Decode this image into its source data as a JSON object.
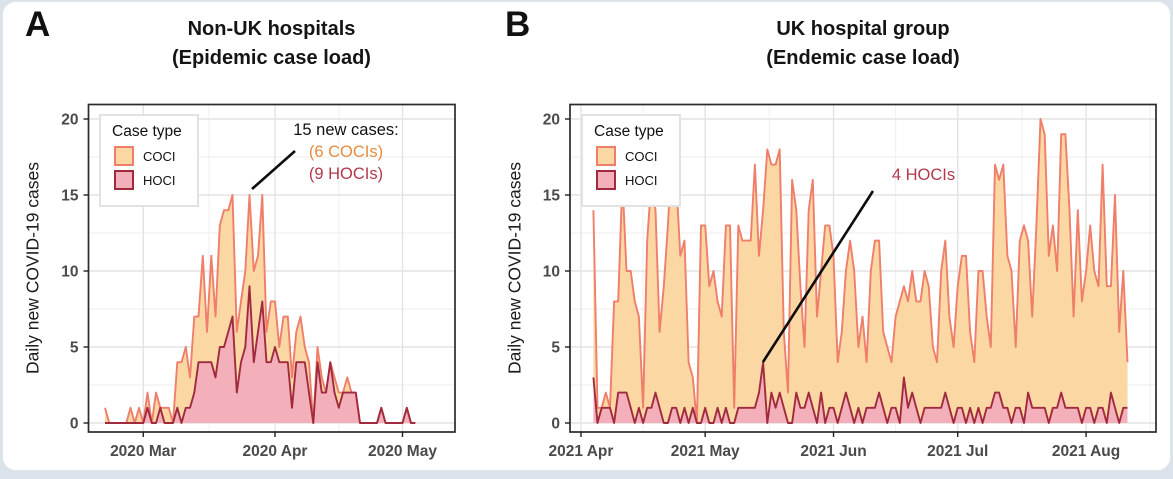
{
  "page": {
    "background": "#dbe2ea",
    "card_background": "#ffffff",
    "card_border": "#e3e7ec"
  },
  "panels": [
    {
      "label": "A",
      "title_line1": "Non-UK hospitals",
      "title_line2": "(Epidemic case load)",
      "y_axis_label": "Daily new COVID-19 cases",
      "legend": {
        "title": "Case type"
      },
      "annotation": {
        "line1": "15 new cases:",
        "line2": "(6 COCIs)",
        "line3": "(9 HOCIs)",
        "coci_color": "#E78C3E",
        "hoci_color": "#B2394B"
      }
    },
    {
      "label": "B",
      "title_line1": "UK hospital group",
      "title_line2": "(Endemic case load)",
      "y_axis_label": "Daily new COVID-19 cases",
      "legend": {
        "title": "Case type"
      },
      "annotation": {
        "line1": "4 HOCIs",
        "color": "#B2394B"
      }
    }
  ],
  "chart_data": [
    {
      "type": "area",
      "stacked": true,
      "title": "Non-UK hospitals (Epidemic case load)",
      "xlabel": "",
      "ylabel": "Daily new COVID-19 cases",
      "x_start_date": "2020-02-21",
      "x_tick_labels": [
        "2020 Mar",
        "2020 Apr",
        "2020 May"
      ],
      "y_ticks": [
        0,
        5,
        10,
        15,
        20
      ],
      "ylim": [
        -0.6,
        21
      ],
      "grid": true,
      "legend_position": "top-left",
      "series": [
        {
          "name": "COCI",
          "fill": "#FBD7A3",
          "stroke": "#EF7E6B",
          "values": [
            1,
            0,
            0,
            0,
            0,
            0,
            1,
            0,
            1,
            0,
            1,
            0,
            2,
            0,
            1,
            1,
            0,
            3,
            4,
            4,
            2,
            5,
            3,
            7,
            2,
            7,
            4,
            8,
            9,
            8,
            8,
            4,
            4,
            5,
            6,
            6,
            5,
            7,
            2,
            4,
            3,
            1,
            3,
            3,
            2,
            2,
            3,
            1,
            2,
            0,
            1,
            1,
            0,
            0,
            1,
            1,
            0,
            1,
            0,
            0,
            0,
            0,
            0,
            0,
            0,
            0,
            0,
            0,
            0,
            0,
            0,
            0,
            0,
            0
          ]
        },
        {
          "name": "HOCI",
          "fill": "#F3AFBA",
          "stroke": "#A02B3E",
          "values": [
            0,
            0,
            0,
            0,
            0,
            0,
            0,
            0,
            0,
            0,
            1,
            0,
            0,
            1,
            0,
            0,
            0,
            1,
            0,
            1,
            1,
            2,
            4,
            4,
            4,
            4,
            3,
            5,
            5,
            6,
            7,
            2,
            4,
            5,
            9,
            4,
            6,
            8,
            4,
            4,
            5,
            4,
            4,
            4,
            1,
            4,
            4,
            4,
            2,
            0,
            4,
            2,
            2,
            4,
            2,
            1,
            2,
            2,
            2,
            2,
            0,
            0,
            0,
            0,
            0,
            1,
            0,
            0,
            0,
            0,
            0,
            1,
            0,
            0
          ]
        }
      ],
      "annotation": {
        "text": "15 new cases: (6 COCIs) (9 HOCIs)",
        "date": "2020-03-26",
        "total": 15,
        "coci": 6,
        "hoci": 9
      }
    },
    {
      "type": "area",
      "stacked": true,
      "title": "UK hospital group (Endemic case load)",
      "xlabel": "",
      "ylabel": "Daily new COVID-19 cases",
      "x_start_date": "2021-04-04",
      "x_tick_labels": [
        "2021 Apr",
        "2021 May",
        "2021 Jun",
        "2021 Jul",
        "2021 Aug"
      ],
      "y_ticks": [
        0,
        5,
        10,
        15,
        20
      ],
      "ylim": [
        -0.6,
        21
      ],
      "grid": true,
      "legend_position": "top-left",
      "series": [
        {
          "name": "COCI",
          "fill": "#FBD7A3",
          "stroke": "#EF7E6B",
          "values": [
            11,
            1,
            0,
            1,
            0,
            8,
            6,
            14,
            8,
            9,
            8,
            6,
            1,
            11,
            15,
            12,
            5,
            9,
            13,
            17,
            15,
            11,
            11,
            4,
            2,
            0,
            13,
            12,
            9,
            10,
            7,
            7,
            12,
            13,
            1,
            12,
            11,
            11,
            11,
            16,
            9,
            10,
            18,
            15,
            16,
            16,
            5,
            2,
            16,
            12,
            8,
            4,
            12,
            15,
            7,
            8,
            13,
            12,
            10,
            4,
            5,
            8,
            11,
            10,
            4,
            7,
            3,
            9,
            11,
            10,
            5,
            5,
            3,
            6,
            8,
            6,
            7,
            8,
            7,
            8,
            9,
            8,
            4,
            3,
            9,
            10,
            6,
            5,
            8,
            10,
            11,
            5,
            4,
            9,
            10,
            6,
            4,
            15,
            14,
            16,
            10,
            10,
            4,
            11,
            13,
            10,
            6,
            12,
            19,
            18,
            11,
            12,
            9,
            17,
            18,
            13,
            6,
            13,
            8,
            9,
            12,
            10,
            8,
            16,
            9,
            7,
            14,
            6,
            9,
            3
          ]
        },
        {
          "name": "HOCI",
          "fill": "#F3AFBA",
          "stroke": "#A02B3E",
          "values": [
            3,
            0,
            1,
            1,
            1,
            0,
            2,
            2,
            2,
            1,
            0,
            1,
            0,
            1,
            1,
            2,
            1,
            0,
            0,
            1,
            1,
            0,
            1,
            0,
            1,
            0,
            0,
            1,
            0,
            0,
            1,
            0,
            1,
            0,
            0,
            1,
            1,
            1,
            1,
            1,
            2,
            4,
            0,
            2,
            1,
            2,
            1,
            0,
            0,
            2,
            1,
            1,
            2,
            1,
            0,
            2,
            0,
            1,
            1,
            0,
            1,
            2,
            1,
            0,
            1,
            0,
            1,
            1,
            1,
            2,
            1,
            0,
            1,
            1,
            0,
            3,
            1,
            2,
            1,
            0,
            1,
            1,
            1,
            1,
            1,
            2,
            1,
            0,
            1,
            1,
            0,
            1,
            0,
            1,
            0,
            1,
            1,
            2,
            2,
            1,
            1,
            0,
            1,
            1,
            0,
            2,
            1,
            1,
            1,
            1,
            0,
            1,
            1,
            2,
            1,
            1,
            1,
            1,
            0,
            1,
            1,
            0,
            1,
            1,
            0,
            2,
            1,
            0,
            1,
            1
          ]
        }
      ],
      "annotation": {
        "text": "4 HOCIs",
        "date": "2021-05-15",
        "hoci": 4
      }
    }
  ]
}
